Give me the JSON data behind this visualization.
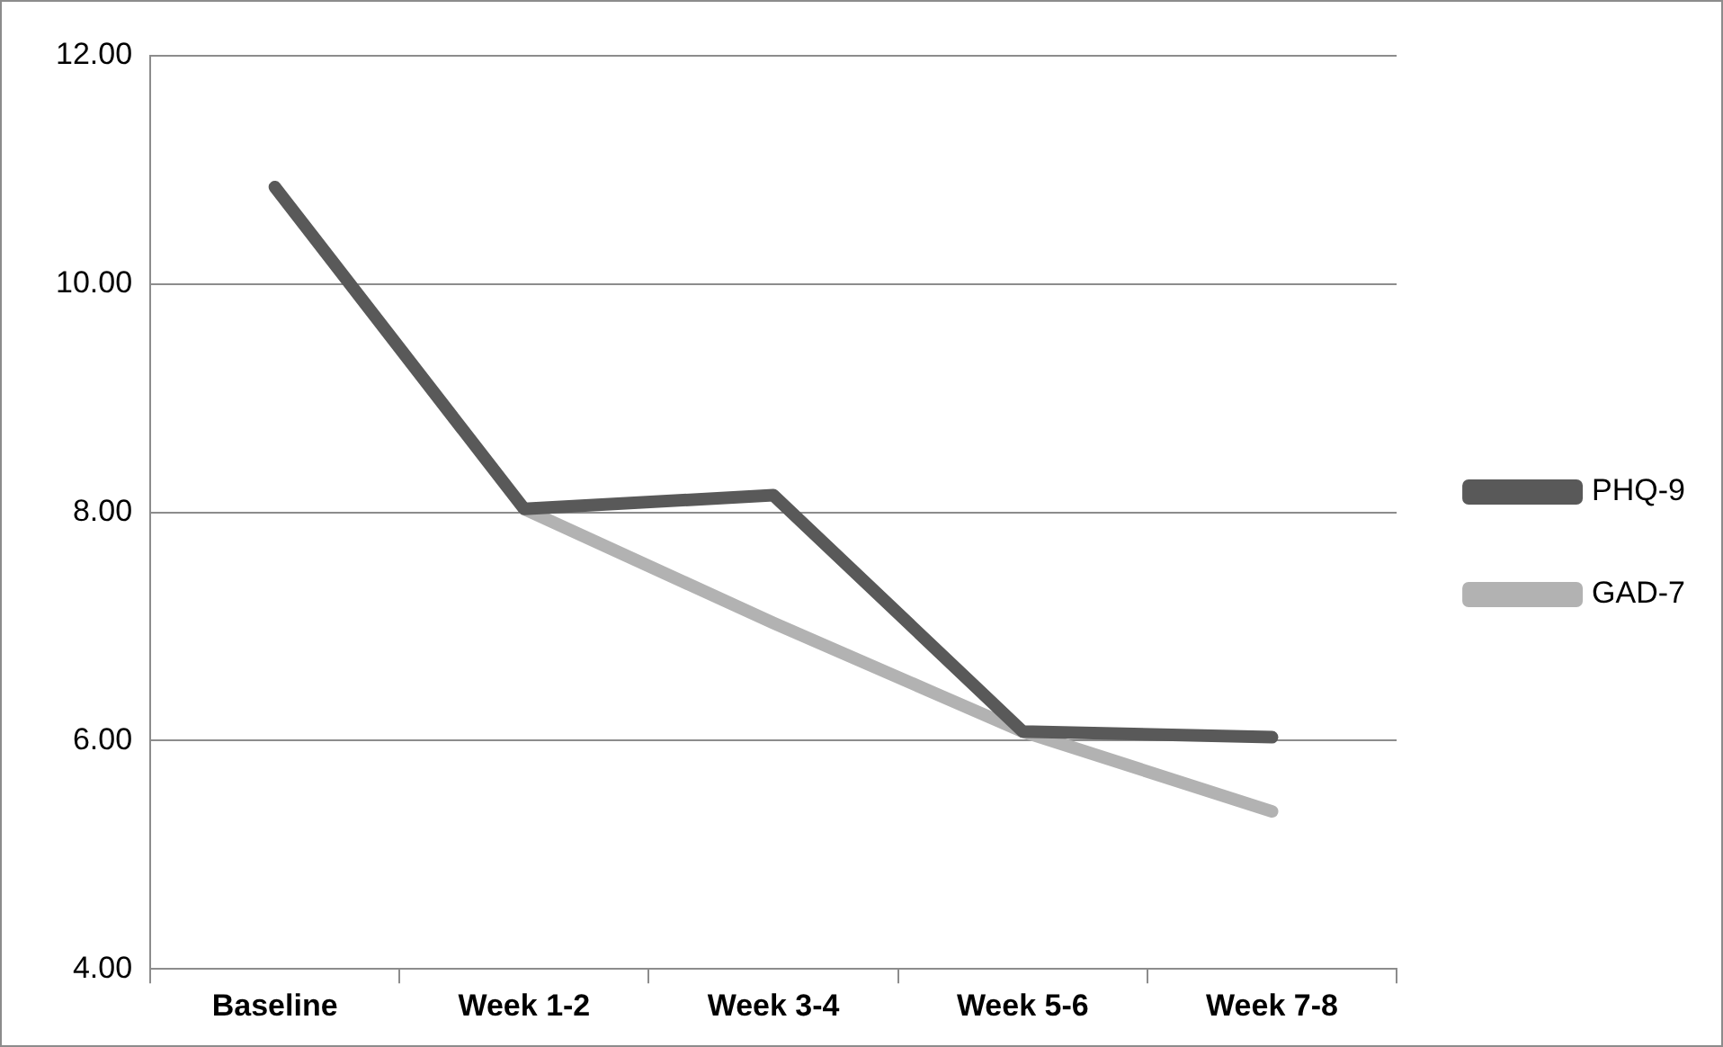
{
  "chart_data": {
    "type": "line",
    "categories": [
      "Baseline",
      "Week 1-2",
      "Week 3-4",
      "Week 5-6",
      "Week 7-8"
    ],
    "series": [
      {
        "name": "PHQ-9",
        "color": "#595959",
        "values": [
          10.85,
          8.03,
          8.15,
          6.08,
          6.03
        ]
      },
      {
        "name": "GAD-7",
        "color": "#b2b2b2",
        "values": [
          null,
          8.03,
          7.03,
          6.08,
          5.38
        ]
      }
    ],
    "ylim": [
      4,
      12
    ],
    "yticks": [
      {
        "value": 4,
        "label": "4.00"
      },
      {
        "value": 6,
        "label": "6.00"
      },
      {
        "value": 8,
        "label": "8.00"
      },
      {
        "value": 10,
        "label": "10.00"
      },
      {
        "value": 12,
        "label": "12.00"
      }
    ],
    "grid": "y",
    "legend": "right",
    "marker": "none",
    "line_style": "solid"
  }
}
